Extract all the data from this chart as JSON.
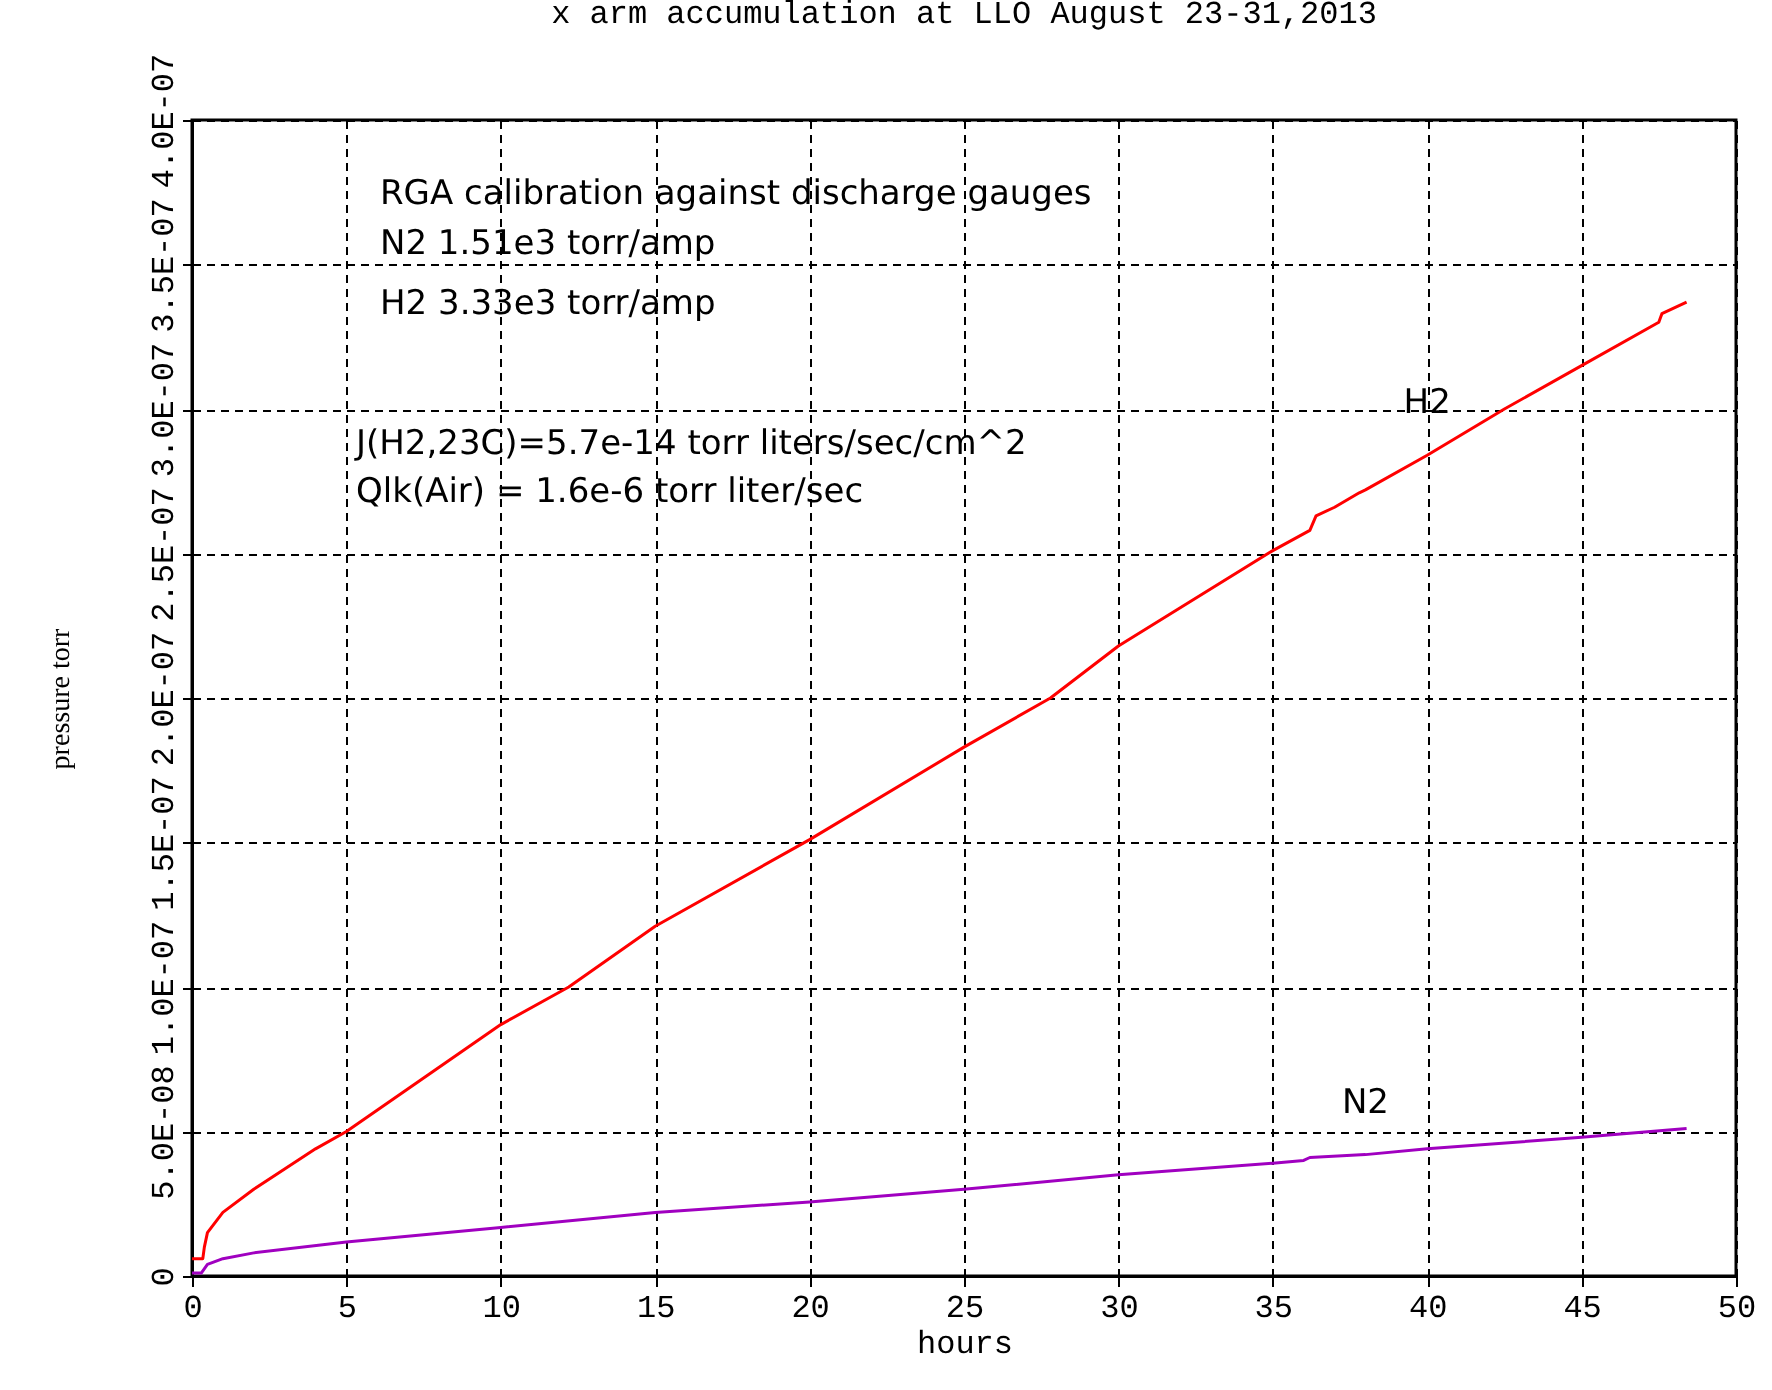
{
  "chart_data": {
    "type": "line",
    "title": "x arm accumulation at LLO August 23-31,2013",
    "xlabel": "hours",
    "ylabel": "pressure torr",
    "xlim": [
      0,
      50
    ],
    "xticks": [
      0,
      5,
      10,
      15,
      20,
      25,
      30,
      35,
      40,
      45,
      50
    ],
    "ylim": [
      0,
      4e-07
    ],
    "yticks": [
      0,
      {
        "value": 5e-08,
        "label": "5.0E-08"
      },
      {
        "value": 1e-07,
        "label": "1.0E-07"
      },
      {
        "value": 1.5e-07,
        "label": "1.5E-07"
      },
      {
        "value": 2e-07,
        "label": "2.0E-07"
      },
      {
        "value": 2.5e-07,
        "label": "2.5E-07"
      },
      {
        "value": 3e-07,
        "label": "3.0E-07"
      },
      {
        "value": 3.5e-07,
        "label": "3.5E-07"
      },
      {
        "value": 4e-07,
        "label": "4.0E-07"
      }
    ],
    "grid": true,
    "line_style": "solid",
    "marker": "none",
    "series": [
      {
        "name": "H2",
        "color": "#ff0000",
        "x": [
          0,
          0.35,
          0.4,
          0.5,
          1,
          2,
          3,
          4,
          5,
          10,
          12.2,
          15,
          20,
          25,
          27.8,
          30,
          35,
          36.2,
          36.4,
          37,
          37.8,
          38,
          40,
          42.5,
          45,
          47.5,
          47.6,
          48.4
        ],
        "values": [
          6e-09,
          6e-09,
          1e-08,
          1.5e-08,
          2.2e-08,
          3e-08,
          3.7e-08,
          4.4e-08,
          5e-08,
          8.7e-08,
          1e-07,
          1.21e-07,
          1.51e-07,
          1.83e-07,
          2e-07,
          2.18e-07,
          2.51e-07,
          2.58e-07,
          2.63e-07,
          2.66e-07,
          2.71e-07,
          2.72e-07,
          2.84e-07,
          3e-07,
          3.15e-07,
          3.3e-07,
          3.33e-07,
          3.37e-07
        ]
      },
      {
        "name": "N2",
        "color": "#a000c0",
        "x": [
          0,
          0.3,
          0.5,
          1,
          2,
          5,
          10,
          15,
          20,
          25,
          30,
          35,
          36,
          36.2,
          38,
          40,
          45,
          48.4
        ],
        "values": [
          1e-09,
          1e-09,
          4e-09,
          6e-09,
          8e-09,
          1.18e-08,
          1.68e-08,
          2.2e-08,
          2.56e-08,
          3e-08,
          3.5e-08,
          3.9e-08,
          4e-08,
          4.1e-08,
          4.2e-08,
          4.4e-08,
          4.8e-08,
          5.1e-08
        ]
      }
    ],
    "annotations": [
      "RGA calibration against discharge gauges",
      "N2  1.51e3 torr/amp",
      "H2  3.33e3 torr/amp",
      "J(H2,23C)=5.7e-14 torr liters/sec/cm^2",
      "Qlk(Air) = 1.6e-6 torr liter/sec"
    ]
  }
}
